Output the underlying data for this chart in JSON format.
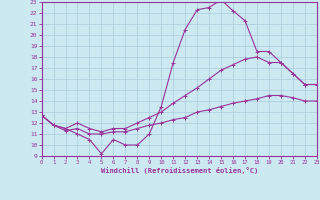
{
  "xlabel": "Windchill (Refroidissement éolien,°C)",
  "xlim": [
    0,
    23
  ],
  "ylim": [
    9,
    23
  ],
  "xticks": [
    0,
    1,
    2,
    3,
    4,
    5,
    6,
    7,
    8,
    9,
    10,
    11,
    12,
    13,
    14,
    15,
    16,
    17,
    18,
    19,
    20,
    21,
    22,
    23
  ],
  "yticks": [
    9,
    10,
    11,
    12,
    13,
    14,
    15,
    16,
    17,
    18,
    19,
    20,
    21,
    22,
    23
  ],
  "line_color": "#993399",
  "bg_color": "#cce8f0",
  "grid_color": "#aaccdd",
  "line1_y": [
    12.7,
    11.8,
    11.5,
    11.0,
    10.5,
    9.2,
    10.5,
    10.0,
    10.0,
    11.0,
    13.5,
    17.5,
    20.5,
    22.3,
    22.5,
    23.2,
    22.2,
    21.3,
    18.5,
    18.5,
    17.5,
    16.5,
    15.5,
    15.5
  ],
  "line2_y": [
    12.7,
    11.8,
    11.5,
    12.0,
    11.5,
    11.2,
    11.5,
    11.5,
    12.0,
    12.5,
    13.0,
    13.8,
    14.5,
    15.2,
    16.0,
    16.8,
    17.3,
    17.8,
    18.0,
    17.5,
    17.5,
    16.5,
    15.5,
    15.5
  ],
  "line3_y": [
    12.7,
    11.8,
    11.3,
    11.5,
    11.0,
    11.0,
    11.2,
    11.2,
    11.5,
    11.8,
    12.0,
    12.3,
    12.5,
    13.0,
    13.2,
    13.5,
    13.8,
    14.0,
    14.2,
    14.5,
    14.5,
    14.3,
    14.0,
    14.0
  ]
}
